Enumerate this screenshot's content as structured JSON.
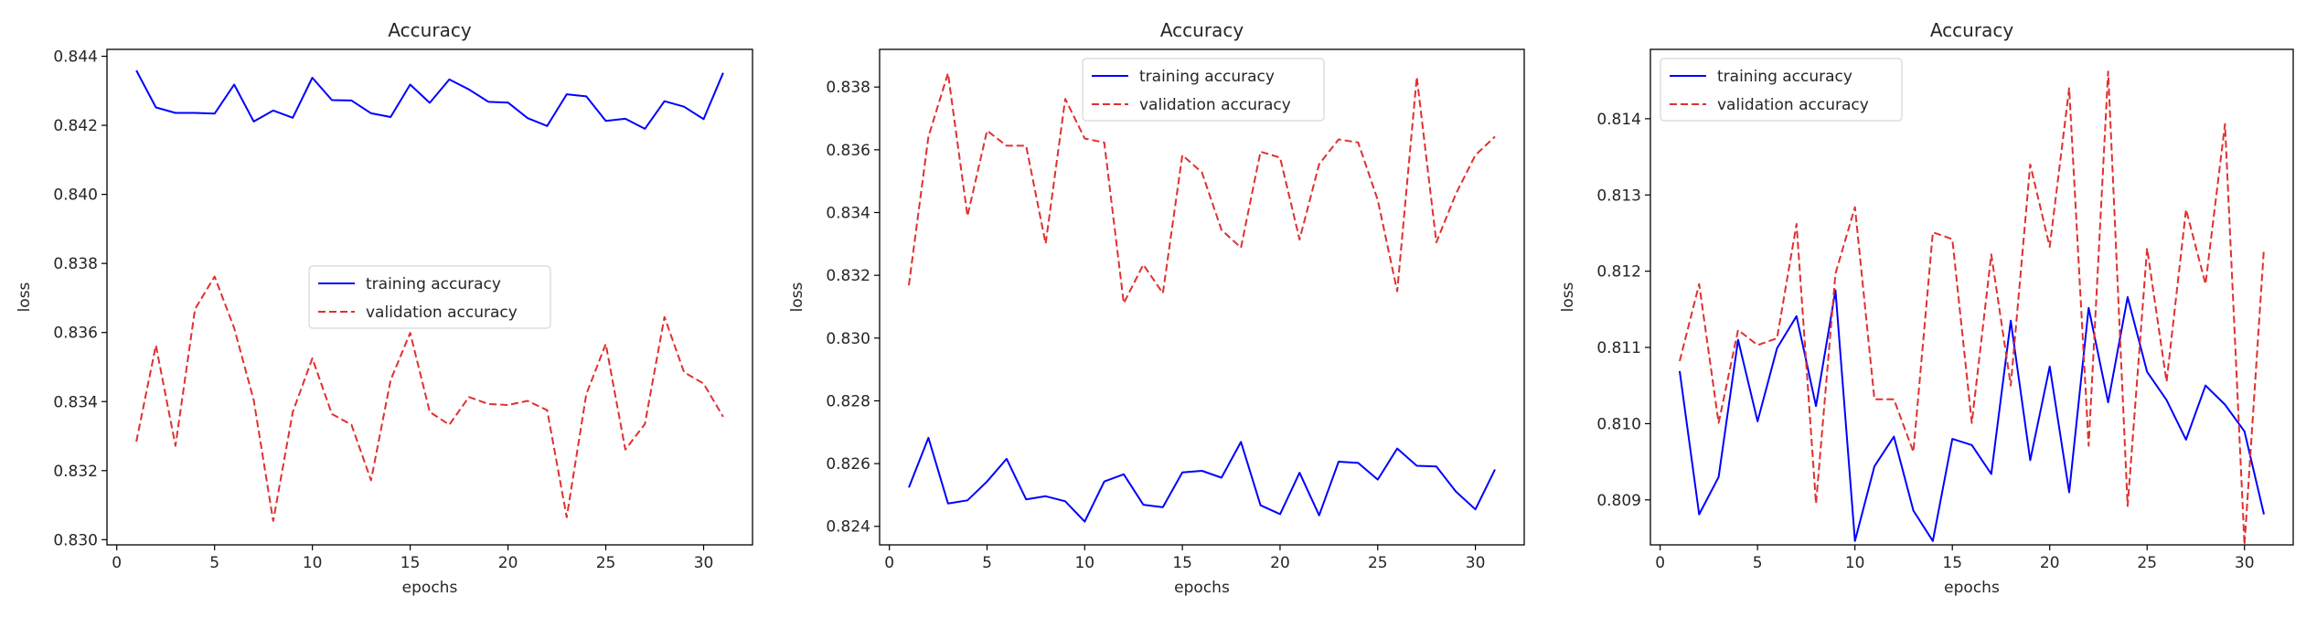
{
  "chart_data": [
    {
      "type": "line",
      "title": "Accuracy",
      "xlabel": "epochs",
      "ylabel": "loss",
      "xlim": [
        -0.5,
        32.5
      ],
      "ylim": [
        0.82985,
        0.8442
      ],
      "xticks": [
        0,
        5,
        10,
        15,
        20,
        25,
        30
      ],
      "yticks": [
        0.83,
        0.832,
        0.834,
        0.836,
        0.838,
        0.84,
        0.842,
        0.844
      ],
      "ytick_labels": [
        "0.830",
        "0.832",
        "0.834",
        "0.836",
        "0.838",
        "0.840",
        "0.842",
        "0.844"
      ],
      "grid": false,
      "legend_placement": "center",
      "x": [
        1,
        2,
        3,
        4,
        5,
        6,
        7,
        8,
        9,
        10,
        11,
        12,
        13,
        14,
        15,
        16,
        17,
        18,
        19,
        20,
        21,
        22,
        23,
        24,
        25,
        26,
        27,
        28,
        29,
        30,
        31
      ],
      "series": [
        {
          "name": "training accuracy",
          "color": "#0000ff",
          "style": "solid",
          "values": [
            0.84359,
            0.84252,
            0.84236,
            0.84236,
            0.84234,
            0.84318,
            0.84211,
            0.84243,
            0.84222,
            0.84338,
            0.84273,
            0.84272,
            0.84235,
            0.84224,
            0.84318,
            0.84265,
            0.84333,
            0.84304,
            0.84268,
            0.84266,
            0.84221,
            0.84198,
            0.8429,
            0.84284,
            0.84213,
            0.84219,
            0.8419,
            0.8427,
            0.84254,
            0.84218,
            0.84352
          ]
        },
        {
          "name": "validation accuracy",
          "color": "#e03030",
          "style": "dashed",
          "values": [
            0.83284,
            0.83563,
            0.83272,
            0.83668,
            0.83762,
            0.83613,
            0.83404,
            0.83054,
            0.8337,
            0.83525,
            0.83364,
            0.83333,
            0.83172,
            0.83462,
            0.83599,
            0.8337,
            0.83333,
            0.83413,
            0.83393,
            0.8339,
            0.83402,
            0.83375,
            0.83065,
            0.83421,
            0.83567,
            0.83261,
            0.83335,
            0.83645,
            0.83485,
            0.83452,
            0.83356
          ]
        }
      ]
    },
    {
      "type": "line",
      "title": "Accuracy",
      "xlabel": "epochs",
      "ylabel": "loss",
      "xlim": [
        -0.5,
        32.5
      ],
      "ylim": [
        0.82341,
        0.8392
      ],
      "xticks": [
        0,
        5,
        10,
        15,
        20,
        25,
        30
      ],
      "yticks": [
        0.824,
        0.826,
        0.828,
        0.83,
        0.832,
        0.834,
        0.836,
        0.838
      ],
      "ytick_labels": [
        "0.824",
        "0.826",
        "0.828",
        "0.830",
        "0.832",
        "0.834",
        "0.836",
        "0.838"
      ],
      "grid": false,
      "legend_placement": "upper center",
      "x": [
        1,
        2,
        3,
        4,
        5,
        6,
        7,
        8,
        9,
        10,
        11,
        12,
        13,
        14,
        15,
        16,
        17,
        18,
        19,
        20,
        21,
        22,
        23,
        24,
        25,
        26,
        27,
        28,
        29,
        30,
        31
      ],
      "series": [
        {
          "name": "training accuracy",
          "color": "#0000ff",
          "style": "solid",
          "values": [
            0.82524,
            0.82682,
            0.82473,
            0.82483,
            0.82543,
            0.82615,
            0.82486,
            0.82496,
            0.8248,
            0.82415,
            0.82543,
            0.82566,
            0.82469,
            0.82461,
            0.82572,
            0.82577,
            0.82555,
            0.82669,
            0.82467,
            0.82439,
            0.82571,
            0.82435,
            0.82606,
            0.82602,
            0.82549,
            0.82648,
            0.82593,
            0.82591,
            0.82511,
            0.82454,
            0.82581
          ]
        },
        {
          "name": "validation accuracy",
          "color": "#e03030",
          "style": "dashed",
          "values": [
            0.83168,
            0.83642,
            0.83844,
            0.83389,
            0.83661,
            0.83613,
            0.83613,
            0.83301,
            0.83762,
            0.83636,
            0.83623,
            0.83111,
            0.83234,
            0.83143,
            0.83583,
            0.83528,
            0.83345,
            0.83288,
            0.83594,
            0.83575,
            0.83314,
            0.83554,
            0.83633,
            0.83623,
            0.8344,
            0.83149,
            0.83832,
            0.83305,
            0.83459,
            0.83583,
            0.83642
          ]
        }
      ]
    },
    {
      "type": "line",
      "title": "Accuracy",
      "xlabel": "epochs",
      "ylabel": "loss",
      "xlim": [
        -0.5,
        32.5
      ],
      "ylim": [
        0.80841,
        0.81491
      ],
      "xticks": [
        0,
        5,
        10,
        15,
        20,
        25,
        30
      ],
      "yticks": [
        0.809,
        0.81,
        0.811,
        0.812,
        0.813,
        0.814
      ],
      "ytick_labels": [
        "0.809",
        "0.810",
        "0.811",
        "0.812",
        "0.813",
        "0.814"
      ],
      "grid": false,
      "legend_placement": "upper left",
      "x": [
        1,
        2,
        3,
        4,
        5,
        6,
        7,
        8,
        9,
        10,
        11,
        12,
        13,
        14,
        15,
        16,
        17,
        18,
        19,
        20,
        21,
        22,
        23,
        24,
        25,
        26,
        27,
        28,
        29,
        30,
        31
      ],
      "series": [
        {
          "name": "training accuracy",
          "color": "#0000ff",
          "style": "solid",
          "values": [
            0.81069,
            0.80881,
            0.8093,
            0.8111,
            0.81003,
            0.81099,
            0.81141,
            0.81023,
            0.81175,
            0.80846,
            0.80944,
            0.80983,
            0.80886,
            0.80846,
            0.8098,
            0.80972,
            0.80934,
            0.81135,
            0.80952,
            0.81075,
            0.8091,
            0.81152,
            0.81028,
            0.81166,
            0.81068,
            0.81031,
            0.80979,
            0.8105,
            0.81025,
            0.8099,
            0.80881
          ]
        },
        {
          "name": "validation accuracy",
          "color": "#e03030",
          "style": "dashed",
          "values": [
            0.81082,
            0.81183,
            0.81001,
            0.81123,
            0.81103,
            0.81112,
            0.81262,
            0.80895,
            0.81197,
            0.81284,
            0.81032,
            0.81032,
            0.80963,
            0.81251,
            0.81242,
            0.81001,
            0.81222,
            0.8105,
            0.8134,
            0.81232,
            0.8144,
            0.80971,
            0.81462,
            0.80892,
            0.8123,
            0.81055,
            0.81281,
            0.81183,
            0.81393,
            0.80841,
            0.8123
          ]
        }
      ]
    }
  ]
}
